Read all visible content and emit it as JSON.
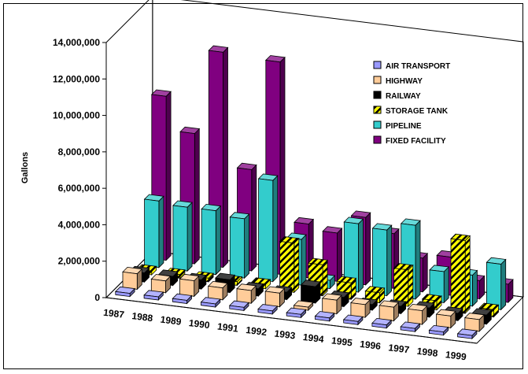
{
  "chart_data": {
    "type": "bar",
    "style": "3d-depth-columns",
    "ylabel": "Gallons",
    "ylim": [
      0,
      14000000
    ],
    "ytick_labels": [
      "0",
      "2,000,000",
      "4,000,000",
      "6,000,000",
      "8,000,000",
      "10,000,000",
      "12,000,000",
      "14,000,000"
    ],
    "categories": [
      "1987",
      "1988",
      "1989",
      "1990",
      "1991",
      "1992",
      "1993",
      "1994",
      "1995",
      "1996",
      "1997",
      "1998",
      "1999"
    ],
    "legend_position": "top-right",
    "grid": false,
    "series": [
      {
        "name": "AIR TRANSPORT",
        "color": "#9999ff",
        "values": [
          0,
          0,
          0,
          0,
          0,
          0,
          0,
          0,
          0,
          0,
          0,
          0,
          0
        ]
      },
      {
        "name": "HIGHWAY",
        "color": "#ffcc99",
        "values": [
          850000,
          650000,
          850000,
          650000,
          700000,
          750000,
          150000,
          750000,
          700000,
          750000,
          750000,
          650000,
          650000
        ]
      },
      {
        "name": "RAILWAY",
        "color": "#000000",
        "values": [
          500000,
          500000,
          500000,
          700000,
          400000,
          400000,
          900000,
          500000,
          300000,
          400000,
          500000,
          400000,
          500000
        ]
      },
      {
        "name": "STORAGE TANK",
        "color": "#ffff00",
        "pattern": "hatch",
        "values": [
          200000,
          200000,
          200000,
          200000,
          250000,
          2700000,
          1700000,
          900000,
          550000,
          2000000,
          500000,
          4000000,
          400000
        ]
      },
      {
        "name": "PIPELINE",
        "color": "#33cccc",
        "values": [
          3650000,
          3500000,
          3500000,
          3250000,
          5550000,
          2500000,
          450000,
          3750000,
          3600000,
          4050000,
          1700000,
          1700000,
          2500000
        ]
      },
      {
        "name": "FIXED FACILITY",
        "color": "#800080",
        "values": [
          9000000,
          7150000,
          11800000,
          5550000,
          11650000,
          2950000,
          2650000,
          3700000,
          3000000,
          1850000,
          2100000,
          1000000,
          1000000
        ]
      }
    ]
  }
}
